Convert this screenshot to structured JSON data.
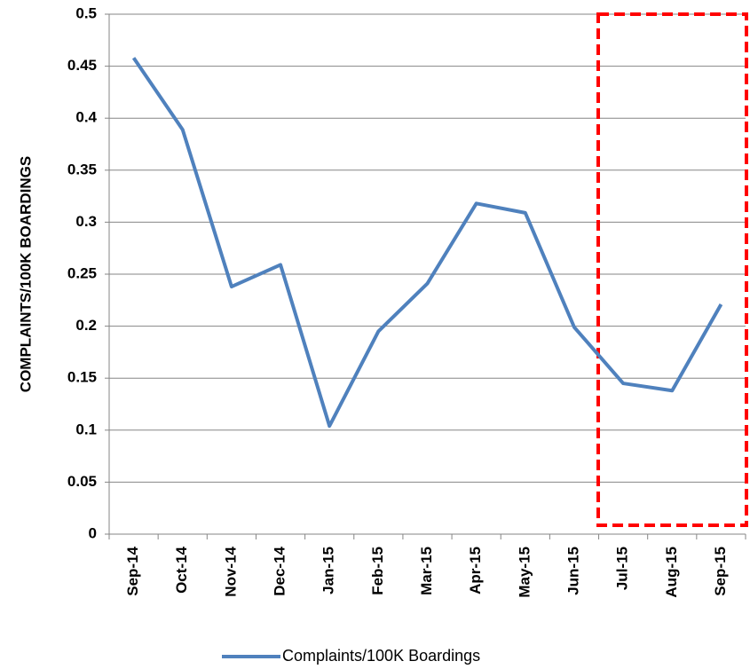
{
  "chart_data": {
    "type": "line",
    "y_axis_label": "COMPLAINTS/100K BOARDINGS",
    "categories": [
      "Sep-14",
      "Oct-14",
      "Nov-14",
      "Dec-14",
      "Jan-15",
      "Feb-15",
      "Mar-15",
      "Apr-15",
      "May-15",
      "Jun-15",
      "Jul-15",
      "Aug-15",
      "Sep-15"
    ],
    "series": [
      {
        "name": "Complaints/100K Boardings",
        "color": "#4f81bd",
        "values": [
          0.458,
          0.389,
          0.238,
          0.259,
          0.104,
          0.195,
          0.241,
          0.318,
          0.309,
          0.199,
          0.145,
          0.138,
          0.221
        ]
      }
    ],
    "ylim": [
      0,
      0.5
    ],
    "yticks": [
      0,
      0.05,
      0.1,
      0.15,
      0.2,
      0.25,
      0.3,
      0.35,
      0.4,
      0.45,
      0.5
    ],
    "grid": true,
    "legend": "bottom"
  }
}
